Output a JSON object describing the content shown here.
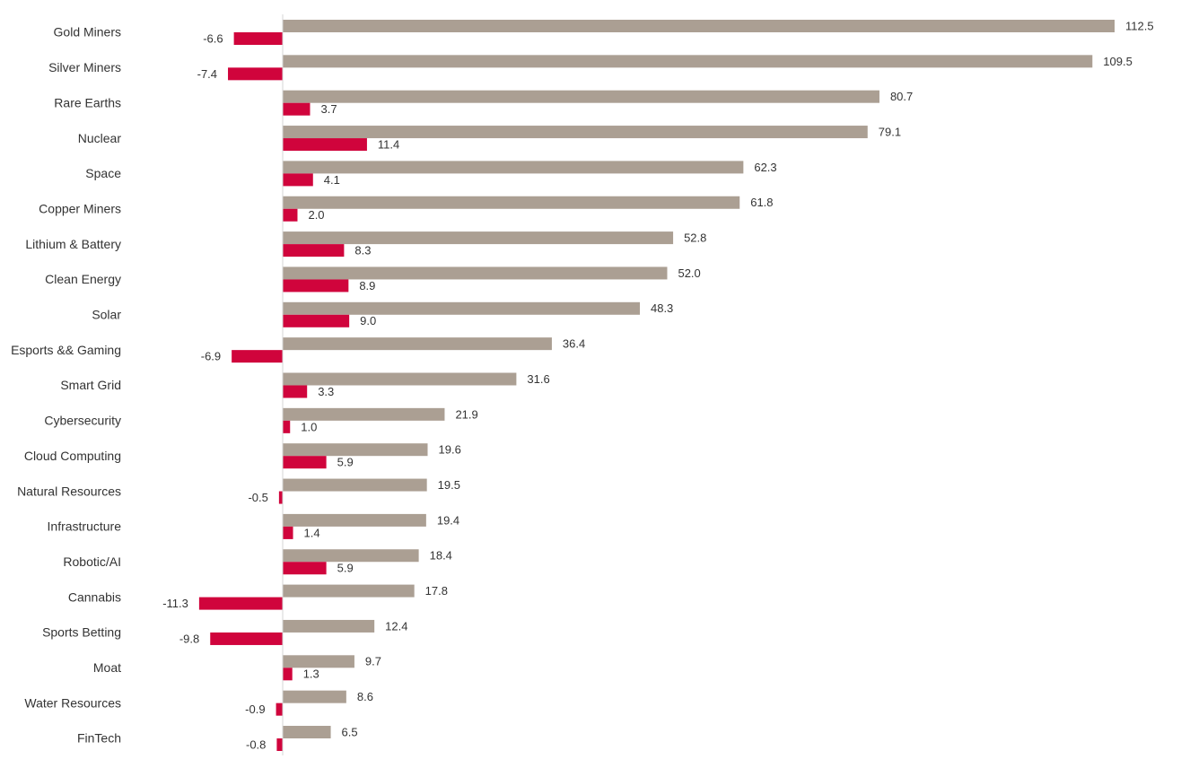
{
  "chart_data": {
    "type": "bar",
    "orientation": "horizontal",
    "categories": [
      "Gold Miners",
      "Silver Miners",
      "Rare Earths",
      "Nuclear",
      "Space",
      "Copper Miners",
      "Lithium & Battery",
      "Clean Energy",
      "Solar",
      "Esports && Gaming",
      "Smart Grid",
      "Cybersecurity",
      "Cloud Computing",
      "Natural Resources",
      "Infrastructure",
      "Robotic/AI",
      "Cannabis",
      "Sports Betting",
      "Moat",
      "Water Resources",
      "FinTech"
    ],
    "series": [
      {
        "color": "#ab9f93",
        "values": [
          112.5,
          109.5,
          80.7,
          79.1,
          62.3,
          61.8,
          52.8,
          52.0,
          48.3,
          36.4,
          31.6,
          21.9,
          19.6,
          19.5,
          19.4,
          18.4,
          17.8,
          12.4,
          9.7,
          8.6,
          6.5
        ],
        "labels": [
          "112.5",
          "109.5",
          "80.7",
          "79.1",
          "62.3",
          "61.8",
          "52.8",
          "52.0",
          "48.3",
          "36.4",
          "31.6",
          "21.9",
          "19.6",
          "19.5",
          "19.4",
          "18.4",
          "17.8",
          "12.4",
          "9.7",
          "8.6",
          "6.5"
        ]
      },
      {
        "color": "#d0043c",
        "values": [
          -6.6,
          -7.4,
          3.7,
          11.4,
          4.1,
          2.0,
          8.3,
          8.9,
          9.0,
          -6.9,
          3.3,
          1.0,
          5.9,
          -0.5,
          1.4,
          5.9,
          -11.3,
          -9.8,
          1.3,
          -0.9,
          -0.8
        ],
        "labels": [
          "-6.6",
          "-7.4",
          "3.7",
          "11.4",
          "4.1",
          "2.0",
          "8.3",
          "8.9",
          "9.0",
          "-6.9",
          "3.3",
          "1.0",
          "5.9",
          "-0.5",
          "1.4",
          "5.9",
          "-11.3",
          "-9.8",
          "1.3",
          "-0.9",
          "-0.8"
        ]
      }
    ],
    "xlim": [
      -38.5,
      120
    ],
    "grid": false,
    "legend": "none",
    "title": "",
    "xlabel": "",
    "ylabel": ""
  }
}
